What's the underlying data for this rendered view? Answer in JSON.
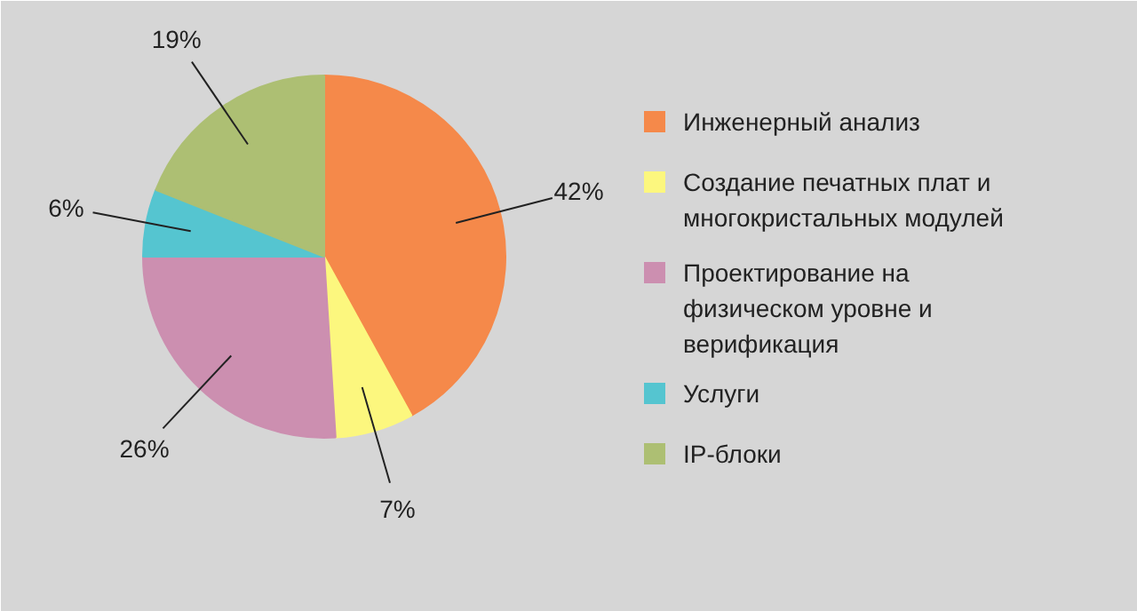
{
  "chart_data": {
    "type": "pie",
    "categories": [
      "Инженерный анализ",
      "Создание печатных плат и многокристальных модулей",
      "Проектирование на физическом уровне и верификация",
      "Услуги",
      "IP-блоки"
    ],
    "values": [
      42,
      7,
      26,
      6,
      19
    ],
    "value_labels": [
      "42%",
      "7%",
      "26%",
      "6%",
      "19%"
    ],
    "colors": [
      "#f5894a",
      "#fcf77e",
      "#cc8fb0",
      "#55c5d0",
      "#adbf73"
    ],
    "legend": "right"
  }
}
